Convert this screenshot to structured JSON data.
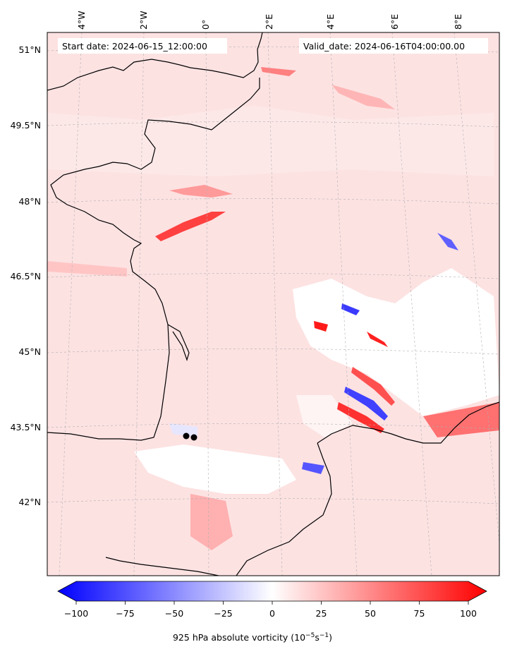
{
  "map": {
    "start_date": "Start date: 2024-06-15_12:00:00",
    "valid_date": "Valid_date: 2024-06-16T04:00:00.00",
    "lon_labels": [
      "4°W",
      "2°W",
      "0°",
      "2°E",
      "4°E",
      "6°E",
      "8°E"
    ],
    "lat_labels": [
      "51°N",
      "49.5°N",
      "48°N",
      "46.5°N",
      "45°N",
      "43.5°N",
      "42°N"
    ],
    "colors": {
      "coast": "#000000",
      "field_pos": "#ff0000",
      "field_neg": "#0000ff",
      "field_bg": "#fde2e2",
      "markers": "#000000"
    }
  },
  "colorbar": {
    "ticks": [
      "−100",
      "−75",
      "−50",
      "−25",
      "0",
      "25",
      "50",
      "75",
      "100"
    ],
    "caption_main": "925 hPa absolute vorticity (10",
    "exp1": "−5",
    "caption_mid": "s",
    "exp2": "−1",
    "caption_end": ")",
    "range": [
      -100,
      100
    ],
    "cmap": "bwr"
  }
}
